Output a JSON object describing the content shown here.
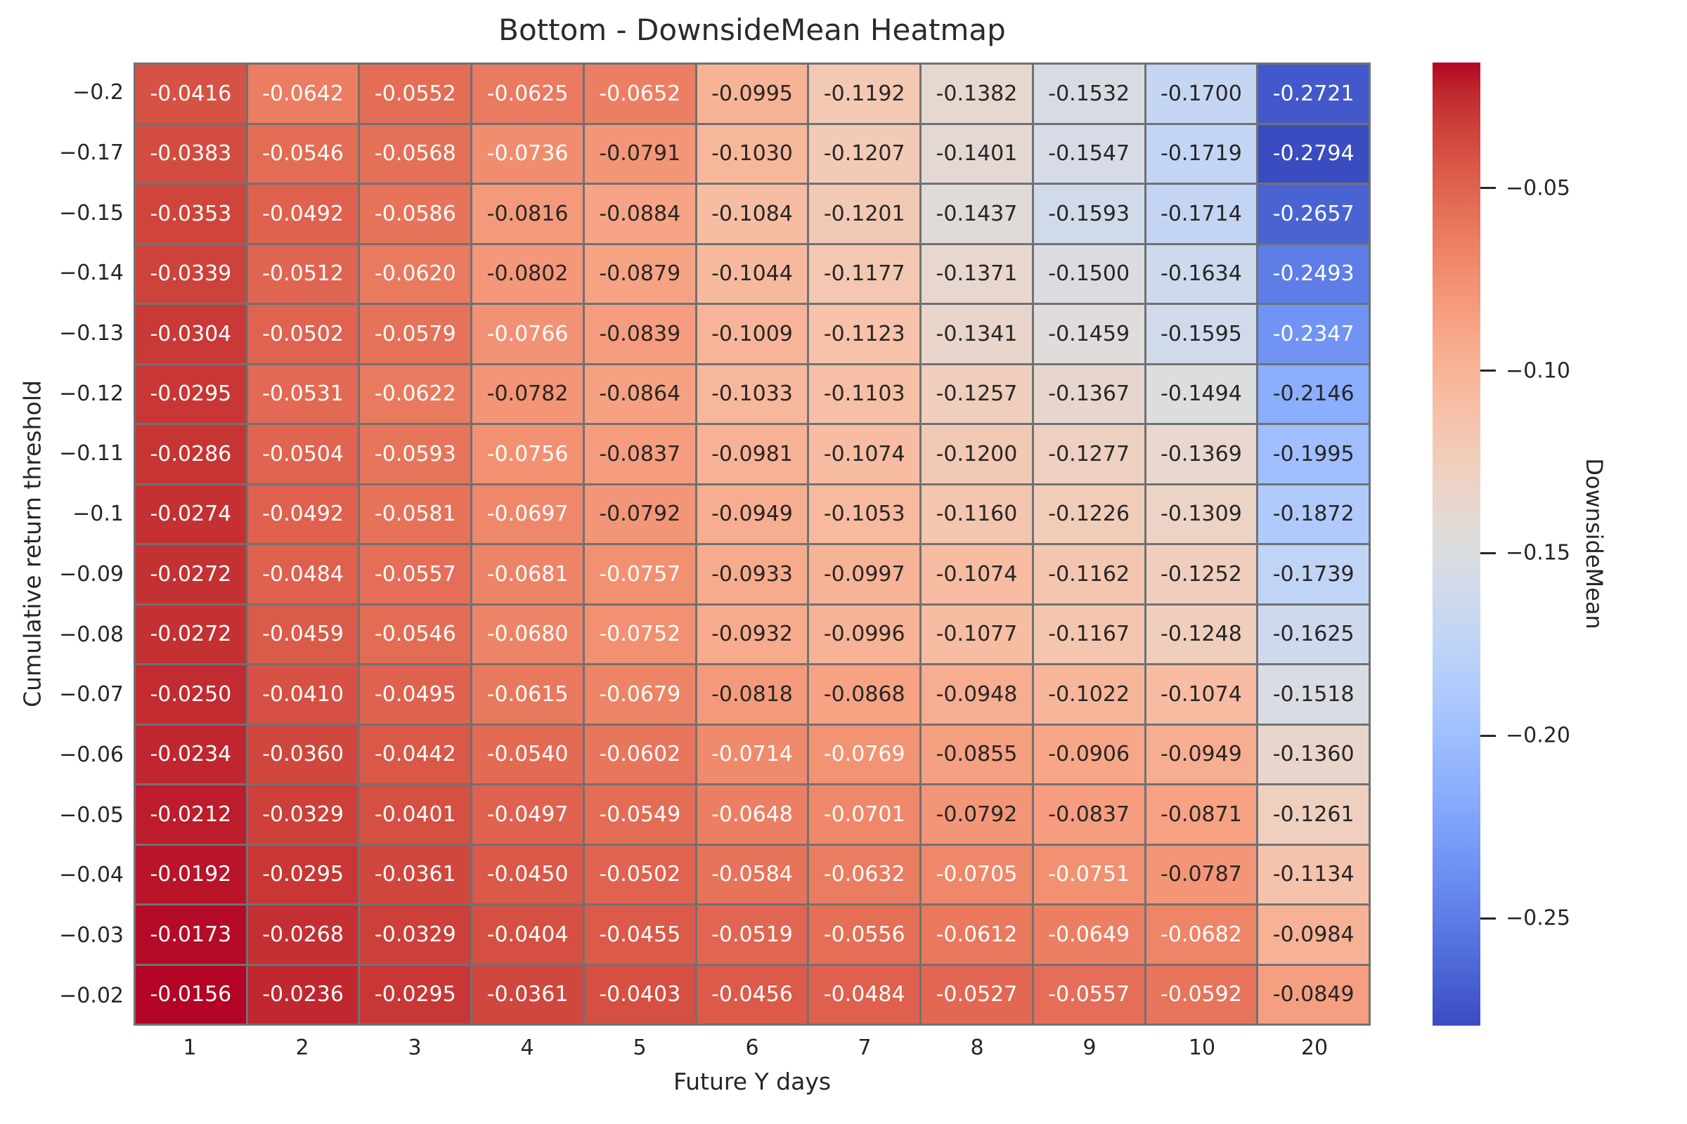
{
  "figure": {
    "title": "Bottom - DownsideMean Heatmap",
    "xlabel": "Future Y days",
    "ylabel": "Cumulative return threshold"
  },
  "colorbar": {
    "label": "DownsideMean",
    "vmin": -0.2794,
    "vmax": -0.0156,
    "ticks": [
      {
        "value": -0.05,
        "label": "−0.05"
      },
      {
        "value": -0.1,
        "label": "−0.10"
      },
      {
        "value": -0.15,
        "label": "−0.15"
      },
      {
        "value": -0.2,
        "label": "−0.20"
      },
      {
        "value": -0.25,
        "label": "−0.25"
      }
    ]
  },
  "chart_data": {
    "type": "heatmap",
    "title": "Bottom - DownsideMean Heatmap",
    "xlabel": "Future Y days",
    "ylabel": "Cumulative return threshold",
    "colormap": "coolwarm",
    "colorbar_label": "DownsideMean",
    "vmin": -0.2794,
    "vmax": -0.0156,
    "annot_format": ".4f",
    "grid_line_color": "#6e7274",
    "annot_text_colors": {
      "on_light": "#262626",
      "on_dark": "#ffffff"
    },
    "x_categories": [
      "1",
      "2",
      "3",
      "4",
      "5",
      "6",
      "7",
      "8",
      "9",
      "10",
      "20"
    ],
    "y_categories": [
      "−0.2",
      "−0.17",
      "−0.15",
      "−0.14",
      "−0.13",
      "−0.12",
      "−0.11",
      "−0.1",
      "−0.09",
      "−0.08",
      "−0.07",
      "−0.06",
      "−0.05",
      "−0.04",
      "−0.03",
      "−0.02"
    ],
    "values": [
      [
        -0.0416,
        -0.0642,
        -0.0552,
        -0.0625,
        -0.0652,
        -0.0995,
        -0.1192,
        -0.1382,
        -0.1532,
        -0.17,
        -0.2721
      ],
      [
        -0.0383,
        -0.0546,
        -0.0568,
        -0.0736,
        -0.0791,
        -0.103,
        -0.1207,
        -0.1401,
        -0.1547,
        -0.1719,
        -0.2794
      ],
      [
        -0.0353,
        -0.0492,
        -0.0586,
        -0.0816,
        -0.0884,
        -0.1084,
        -0.1201,
        -0.1437,
        -0.1593,
        -0.1714,
        -0.2657
      ],
      [
        -0.0339,
        -0.0512,
        -0.062,
        -0.0802,
        -0.0879,
        -0.1044,
        -0.1177,
        -0.1371,
        -0.15,
        -0.1634,
        -0.2493
      ],
      [
        -0.0304,
        -0.0502,
        -0.0579,
        -0.0766,
        -0.0839,
        -0.1009,
        -0.1123,
        -0.1341,
        -0.1459,
        -0.1595,
        -0.2347
      ],
      [
        -0.0295,
        -0.0531,
        -0.0622,
        -0.0782,
        -0.0864,
        -0.1033,
        -0.1103,
        -0.1257,
        -0.1367,
        -0.1494,
        -0.2146
      ],
      [
        -0.0286,
        -0.0504,
        -0.0593,
        -0.0756,
        -0.0837,
        -0.0981,
        -0.1074,
        -0.12,
        -0.1277,
        -0.1369,
        -0.1995
      ],
      [
        -0.0274,
        -0.0492,
        -0.0581,
        -0.0697,
        -0.0792,
        -0.0949,
        -0.1053,
        -0.116,
        -0.1226,
        -0.1309,
        -0.1872
      ],
      [
        -0.0272,
        -0.0484,
        -0.0557,
        -0.0681,
        -0.0757,
        -0.0933,
        -0.0997,
        -0.1074,
        -0.1162,
        -0.1252,
        -0.1739
      ],
      [
        -0.0272,
        -0.0459,
        -0.0546,
        -0.068,
        -0.0752,
        -0.0932,
        -0.0996,
        -0.1077,
        -0.1167,
        -0.1248,
        -0.1625
      ],
      [
        -0.025,
        -0.041,
        -0.0495,
        -0.0615,
        -0.0679,
        -0.0818,
        -0.0868,
        -0.0948,
        -0.1022,
        -0.1074,
        -0.1518
      ],
      [
        -0.0234,
        -0.036,
        -0.0442,
        -0.054,
        -0.0602,
        -0.0714,
        -0.0769,
        -0.0855,
        -0.0906,
        -0.0949,
        -0.136
      ],
      [
        -0.0212,
        -0.0329,
        -0.0401,
        -0.0497,
        -0.0549,
        -0.0648,
        -0.0701,
        -0.0792,
        -0.0837,
        -0.0871,
        -0.1261
      ],
      [
        -0.0192,
        -0.0295,
        -0.0361,
        -0.045,
        -0.0502,
        -0.0584,
        -0.0632,
        -0.0705,
        -0.0751,
        -0.0787,
        -0.1134
      ],
      [
        -0.0173,
        -0.0268,
        -0.0329,
        -0.0404,
        -0.0455,
        -0.0519,
        -0.0556,
        -0.0612,
        -0.0649,
        -0.0682,
        -0.0984
      ],
      [
        -0.0156,
        -0.0236,
        -0.0295,
        -0.0361,
        -0.0403,
        -0.0456,
        -0.0484,
        -0.0527,
        -0.0557,
        -0.0592,
        -0.0849
      ]
    ]
  }
}
